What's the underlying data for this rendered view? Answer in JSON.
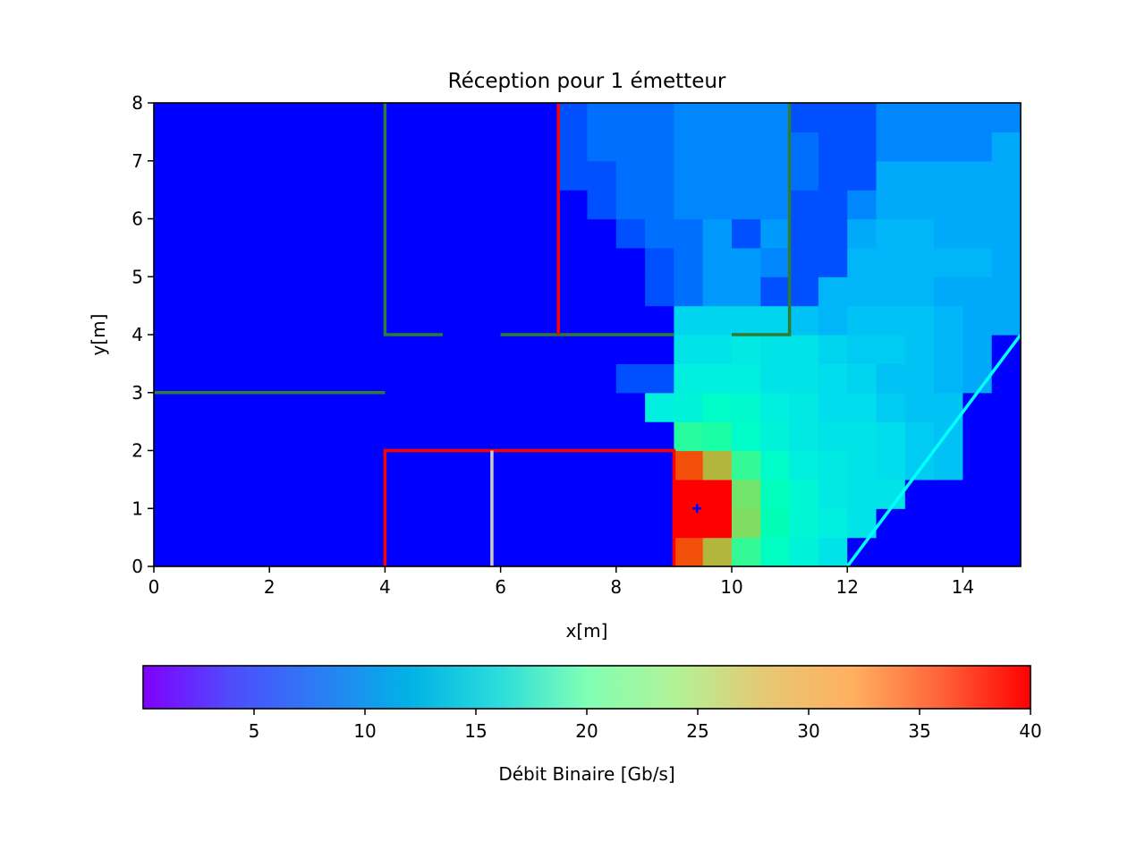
{
  "chart_data": {
    "type": "heatmap",
    "title": "Réception pour 1 émetteur",
    "xlabel": "x[m]",
    "ylabel": "y[m]",
    "xlim": [
      0,
      15
    ],
    "ylim": [
      0,
      8
    ],
    "x_ticks": [
      "0",
      "2",
      "4",
      "6",
      "8",
      "10",
      "12",
      "14"
    ],
    "x_tick_values": [
      0,
      2,
      4,
      6,
      8,
      10,
      12,
      14
    ],
    "y_ticks": [
      "0",
      "1",
      "2",
      "3",
      "4",
      "5",
      "6",
      "7",
      "8"
    ],
    "y_tick_values": [
      0,
      1,
      2,
      3,
      4,
      5,
      6,
      7,
      8
    ],
    "grid": false,
    "cell_size": [
      0.5,
      0.5
    ],
    "z_rows_bottom_to_top": [
      [
        0,
        0,
        0,
        0,
        0,
        0,
        0,
        0,
        0,
        0,
        0,
        0,
        0,
        0,
        0,
        0,
        0,
        0,
        39,
        34,
        24,
        18,
        14,
        11,
        0,
        0,
        0,
        0,
        0,
        0
      ],
      [
        0,
        0,
        0,
        0,
        0,
        0,
        0,
        0,
        0,
        0,
        0,
        0,
        0,
        0,
        0,
        0,
        0,
        0,
        40,
        40,
        30,
        20,
        15,
        13,
        11,
        0,
        0,
        0,
        0,
        0
      ],
      [
        0,
        0,
        0,
        0,
        0,
        0,
        0,
        0,
        0,
        0,
        0,
        0,
        0,
        0,
        0,
        0,
        0,
        0,
        40,
        40,
        29,
        19,
        15,
        12,
        11,
        11,
        0,
        0,
        0,
        0
      ],
      [
        0,
        0,
        0,
        0,
        0,
        0,
        0,
        0,
        0,
        0,
        0,
        0,
        0,
        0,
        0,
        0,
        0,
        0,
        39,
        34,
        24,
        17,
        13,
        12,
        11,
        10,
        8,
        7,
        0,
        0
      ],
      [
        0,
        0,
        0,
        0,
        0,
        0,
        0,
        0,
        0,
        0,
        0,
        0,
        0,
        0,
        0,
        0,
        0,
        0,
        23,
        22,
        17,
        14,
        12,
        11,
        11,
        10,
        8,
        7,
        0,
        0
      ],
      [
        0,
        0,
        0,
        0,
        0,
        0,
        0,
        0,
        0,
        0,
        0,
        0,
        0,
        0,
        0,
        0,
        0,
        13,
        14,
        17,
        16,
        13,
        12,
        10,
        10,
        8,
        7,
        7,
        0,
        0
      ],
      [
        0,
        0,
        0,
        0,
        0,
        0,
        0,
        0,
        0,
        0,
        0,
        0,
        0,
        0,
        0,
        0,
        1,
        1,
        13,
        13,
        13,
        11,
        11,
        10,
        9,
        7,
        7,
        6,
        5,
        0
      ],
      [
        0,
        0,
        0,
        0,
        0,
        0,
        0,
        0,
        0,
        0,
        0,
        0,
        0,
        0,
        0,
        0,
        0,
        0,
        11,
        11,
        12,
        11,
        11,
        9,
        8,
        8,
        7,
        6,
        5,
        0
      ],
      [
        0,
        0,
        0,
        0,
        0,
        0,
        0,
        0,
        0,
        0,
        0,
        0,
        0,
        0,
        0,
        0,
        0,
        0,
        9,
        9,
        9,
        9,
        7,
        6,
        7,
        7,
        7,
        6,
        5,
        5
      ],
      [
        0,
        0,
        0,
        0,
        0,
        0,
        0,
        0,
        0,
        0,
        0,
        0,
        0,
        0,
        0,
        0,
        0,
        1,
        2,
        4,
        4,
        1,
        1,
        6,
        6,
        6,
        6,
        5,
        5,
        5
      ],
      [
        0,
        0,
        0,
        0,
        0,
        0,
        0,
        0,
        0,
        0,
        0,
        0,
        0,
        0,
        0,
        0,
        0,
        1,
        2,
        4,
        4,
        3,
        1,
        1,
        6,
        6,
        6,
        6,
        6,
        5
      ],
      [
        0,
        0,
        0,
        0,
        0,
        0,
        0,
        0,
        0,
        0,
        0,
        0,
        0,
        0,
        0,
        0,
        1,
        2,
        2,
        4,
        1,
        4,
        1,
        1,
        5,
        6,
        6,
        5,
        5,
        5
      ],
      [
        0,
        0,
        0,
        0,
        0,
        0,
        0,
        0,
        0,
        0,
        0,
        0,
        0,
        0,
        0,
        1,
        2,
        2,
        3,
        3,
        3,
        3,
        1,
        1,
        3,
        5,
        5,
        5,
        5,
        5
      ],
      [
        0,
        0,
        0,
        0,
        0,
        0,
        0,
        0,
        0,
        0,
        0,
        0,
        0,
        0,
        1,
        1,
        2,
        2,
        3,
        3,
        3,
        3,
        2,
        1,
        1,
        5,
        5,
        5,
        5,
        5
      ],
      [
        0,
        0,
        0,
        0,
        0,
        0,
        0,
        0,
        0,
        0,
        0,
        0,
        0,
        0,
        1,
        2,
        2,
        2,
        3,
        3,
        3,
        3,
        2,
        1,
        1,
        3,
        3,
        3,
        3,
        5
      ],
      [
        0,
        0,
        0,
        0,
        0,
        0,
        0,
        0,
        0,
        0,
        0,
        0,
        0,
        0,
        1,
        2,
        2,
        2,
        3,
        3,
        3,
        3,
        1,
        1,
        1,
        3,
        3,
        3,
        3,
        3
      ]
    ],
    "walls": [
      {
        "points": [
          [
            4,
            8
          ],
          [
            4,
            4
          ],
          [
            5,
            4
          ]
        ],
        "color": "#2e7d32"
      },
      {
        "points": [
          [
            6,
            4
          ],
          [
            9,
            4
          ]
        ],
        "color": "#2e7d32"
      },
      {
        "points": [
          [
            10,
            4
          ],
          [
            11,
            4
          ],
          [
            11,
            8
          ]
        ],
        "color": "#2e7d32"
      },
      {
        "points": [
          [
            0,
            3
          ],
          [
            4,
            3
          ]
        ],
        "color": "#2e7d32"
      },
      {
        "points": [
          [
            7,
            8
          ],
          [
            7,
            4
          ]
        ],
        "color": "#ff0000"
      },
      {
        "points": [
          [
            4,
            0
          ],
          [
            4,
            2
          ],
          [
            9,
            2
          ],
          [
            9,
            0
          ]
        ],
        "color": "#ff0000"
      },
      {
        "points": [
          [
            5.85,
            0
          ],
          [
            5.85,
            2
          ]
        ],
        "color": "#c8c8c8"
      },
      {
        "points": [
          [
            12,
            0
          ],
          [
            15,
            4
          ]
        ],
        "color": "#00ffff"
      }
    ],
    "emitter": {
      "x": 9.4,
      "y": 1.0,
      "marker": "+",
      "color": "#0000ff"
    },
    "colorbar": {
      "label": "Débit Binaire [Gb/s]",
      "orientation": "horizontal",
      "range": [
        0,
        40
      ],
      "ticks": [
        5,
        10,
        15,
        20,
        25,
        30,
        35,
        40
      ],
      "tick_labels": [
        "5",
        "10",
        "15",
        "20",
        "25",
        "30",
        "35",
        "40"
      ],
      "colormap": "rainbow"
    }
  }
}
